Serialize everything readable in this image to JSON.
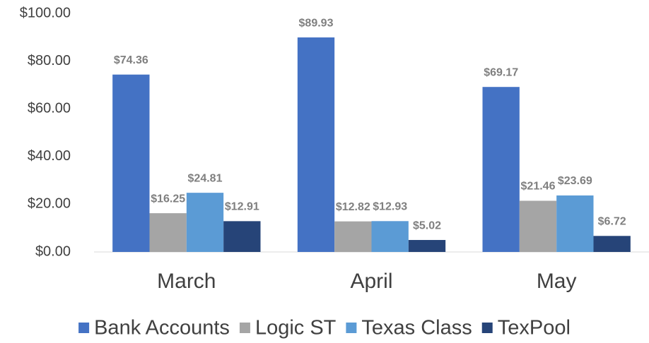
{
  "chart_data": {
    "type": "bar",
    "categories": [
      "March",
      "April",
      "May"
    ],
    "series": [
      {
        "name": "Bank Accounts",
        "color": "#4472c4",
        "values": [
          74.36,
          89.93,
          69.17
        ],
        "value_labels": [
          "$74.36",
          "$89.93",
          "$69.17"
        ]
      },
      {
        "name": "Logic ST",
        "color": "#a5a5a5",
        "values": [
          16.25,
          12.82,
          21.46
        ],
        "value_labels": [
          "$16.25",
          "$12.82",
          "$21.46"
        ]
      },
      {
        "name": "Texas Class",
        "color": "#5b9bd5",
        "values": [
          24.81,
          12.93,
          23.69
        ],
        "value_labels": [
          "$24.81",
          "$12.93",
          "$23.69"
        ]
      },
      {
        "name": "TexPool",
        "color": "#264478",
        "values": [
          12.91,
          5.02,
          6.72
        ],
        "value_labels": [
          "$12.91",
          "$5.02",
          "$6.72"
        ]
      }
    ],
    "ylim": [
      0,
      100
    ],
    "yticks": [
      {
        "value": 0,
        "label": "$0.00"
      },
      {
        "value": 20,
        "label": "$20.00"
      },
      {
        "value": 40,
        "label": "$40.00"
      },
      {
        "value": 60,
        "label": "$60.00"
      },
      {
        "value": 80,
        "label": "$80.00"
      },
      {
        "value": 100,
        "label": "$100.00"
      }
    ],
    "legend": "bottom"
  }
}
